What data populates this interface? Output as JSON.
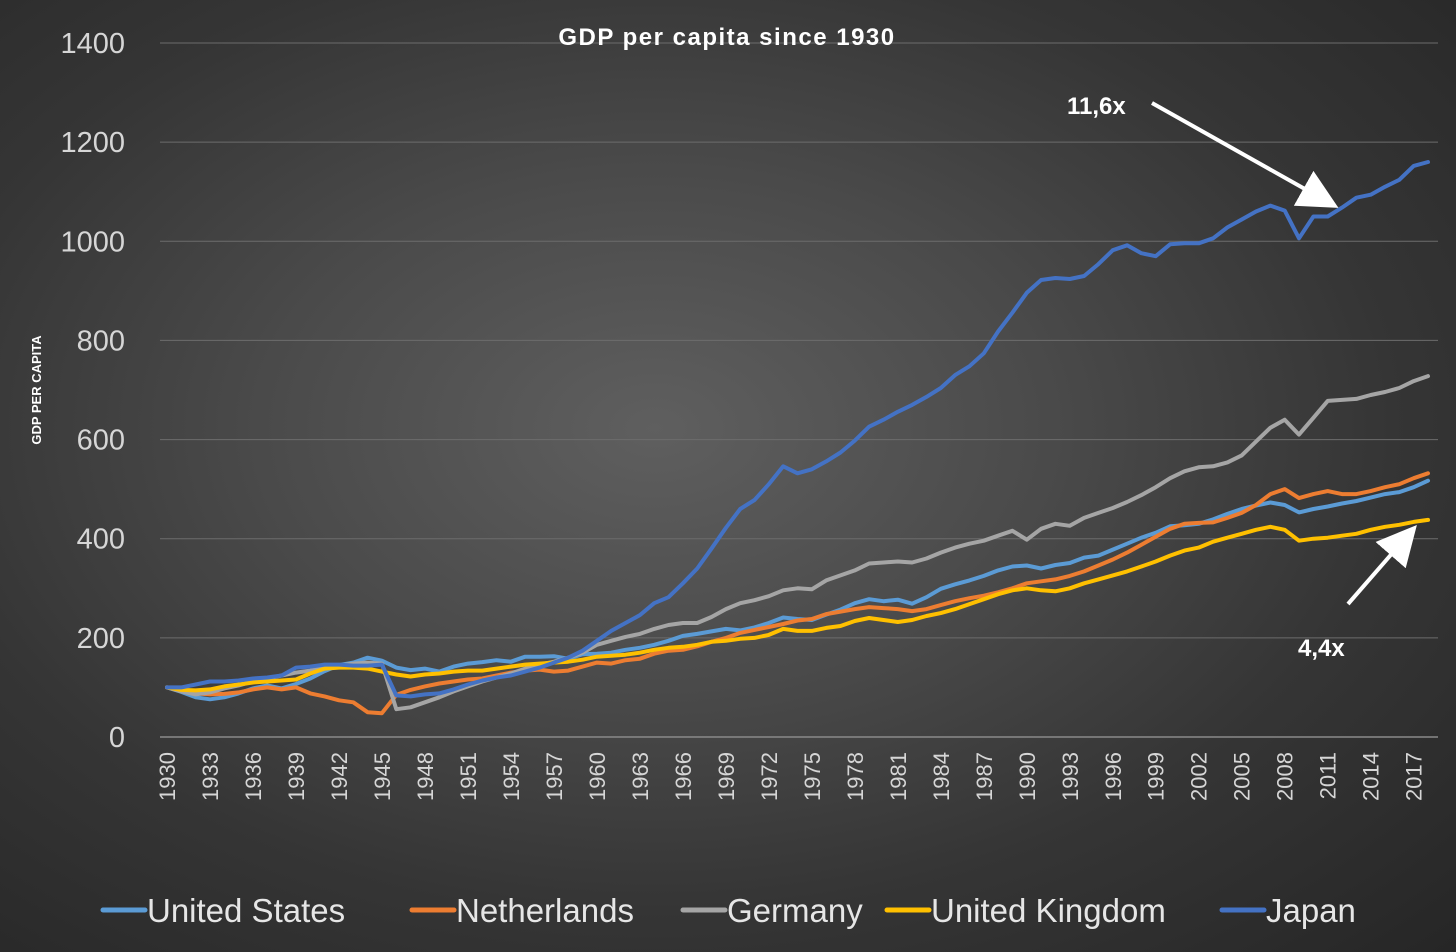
{
  "chart_data": {
    "type": "line",
    "title": "GDP per capita since 1930",
    "xlabel": "",
    "ylabel": "GDP PER CAPITA",
    "ylim": [
      0,
      1400
    ],
    "yticks": [
      "0",
      "200",
      "400",
      "600",
      "800",
      "1000",
      "1200",
      "1400"
    ],
    "xlim": [
      1930,
      2018
    ],
    "xtick_labels": [
      "1930",
      "1933",
      "1936",
      "1939",
      "1942",
      "1945",
      "1948",
      "1951",
      "1954",
      "1957",
      "1960",
      "1963",
      "1966",
      "1969",
      "1972",
      "1975",
      "1978",
      "1981",
      "1984",
      "1987",
      "1990",
      "1993",
      "1996",
      "1999",
      "2002",
      "2005",
      "2008",
      "2011",
      "2014",
      "2017"
    ],
    "grid": true,
    "legend_position": "bottom",
    "colors": {
      "United States": "#5b9bd5",
      "Netherlands": "#ed7d31",
      "Germany": "#a5a5a5",
      "United Kingdom": "#ffc000",
      "Japan": "#4472c4"
    },
    "series": [
      {
        "name": "United States",
        "x": [
          1930,
          1931,
          1932,
          1933,
          1934,
          1935,
          1936,
          1937,
          1938,
          1939,
          1940,
          1941,
          1942,
          1943,
          1944,
          1945,
          1946,
          1947,
          1948,
          1949,
          1950,
          1951,
          1952,
          1953,
          1954,
          1955,
          1956,
          1957,
          1958,
          1959,
          1960,
          1961,
          1962,
          1963,
          1964,
          1965,
          1966,
          1967,
          1968,
          1969,
          1970,
          1971,
          1972,
          1973,
          1974,
          1975,
          1976,
          1977,
          1978,
          1979,
          1980,
          1981,
          1982,
          1983,
          1984,
          1985,
          1986,
          1987,
          1988,
          1989,
          1990,
          1991,
          1992,
          1993,
          1994,
          1995,
          1996,
          1997,
          1998,
          1999,
          2000,
          2001,
          2002,
          2003,
          2004,
          2005,
          2006,
          2007,
          2008,
          2009,
          2010,
          2011,
          2012,
          2013,
          2014,
          2015,
          2016,
          2017,
          2018
        ],
        "values": [
          100,
          91,
          80,
          76,
          80,
          88,
          98,
          104,
          98,
          107,
          118,
          133,
          145,
          150,
          160,
          154,
          140,
          135,
          138,
          132,
          142,
          148,
          151,
          155,
          152,
          162,
          162,
          163,
          158,
          167,
          168,
          170,
          176,
          180,
          186,
          194,
          204,
          208,
          213,
          218,
          215,
          221,
          230,
          241,
          238,
          236,
          247,
          257,
          270,
          278,
          274,
          277,
          269,
          282,
          299,
          308,
          316,
          325,
          336,
          344,
          346,
          340,
          347,
          351,
          362,
          366,
          378,
          390,
          402,
          412,
          425,
          427,
          430,
          439,
          450,
          460,
          467,
          473,
          468,
          453,
          460,
          465,
          471,
          476,
          483,
          490,
          494,
          504,
          517
        ]
      },
      {
        "name": "Netherlands",
        "x": [
          1930,
          1931,
          1932,
          1933,
          1934,
          1935,
          1936,
          1937,
          1938,
          1939,
          1940,
          1941,
          1942,
          1943,
          1944,
          1945,
          1946,
          1947,
          1948,
          1949,
          1950,
          1951,
          1952,
          1953,
          1954,
          1955,
          1956,
          1957,
          1958,
          1959,
          1960,
          1961,
          1962,
          1963,
          1964,
          1965,
          1966,
          1967,
          1968,
          1969,
          1970,
          1971,
          1972,
          1973,
          1974,
          1975,
          1976,
          1977,
          1978,
          1979,
          1980,
          1981,
          1982,
          1983,
          1984,
          1985,
          1986,
          1987,
          1988,
          1989,
          1990,
          1991,
          1992,
          1993,
          1994,
          1995,
          1996,
          1997,
          1998,
          1999,
          2000,
          2001,
          2002,
          2003,
          2004,
          2005,
          2006,
          2007,
          2008,
          2009,
          2010,
          2011,
          2012,
          2013,
          2014,
          2015,
          2016,
          2017,
          2018
        ],
        "values": [
          100,
          94,
          88,
          86,
          87,
          90,
          96,
          100,
          96,
          100,
          88,
          82,
          74,
          70,
          50,
          48,
          85,
          95,
          102,
          108,
          112,
          116,
          118,
          124,
          130,
          134,
          136,
          132,
          134,
          142,
          150,
          148,
          155,
          158,
          168,
          174,
          176,
          183,
          192,
          200,
          210,
          216,
          222,
          228,
          235,
          238,
          248,
          253,
          258,
          262,
          260,
          258,
          254,
          258,
          266,
          274,
          280,
          285,
          292,
          300,
          310,
          314,
          318,
          325,
          334,
          346,
          358,
          372,
          388,
          404,
          420,
          430,
          432,
          433,
          442,
          452,
          468,
          490,
          500,
          482,
          490,
          496,
          490,
          490,
          496,
          504,
          510,
          522,
          532
        ]
      },
      {
        "name": "Germany",
        "x": [
          1930,
          1931,
          1932,
          1933,
          1934,
          1935,
          1936,
          1937,
          1938,
          1939,
          1940,
          1941,
          1942,
          1943,
          1944,
          1945,
          1946,
          1947,
          1948,
          1949,
          1950,
          1951,
          1952,
          1953,
          1954,
          1955,
          1956,
          1957,
          1958,
          1959,
          1960,
          1961,
          1962,
          1963,
          1964,
          1965,
          1966,
          1967,
          1968,
          1969,
          1970,
          1971,
          1972,
          1973,
          1974,
          1975,
          1976,
          1977,
          1978,
          1979,
          1980,
          1981,
          1982,
          1983,
          1984,
          1985,
          1986,
          1987,
          1988,
          1989,
          1990,
          1991,
          1992,
          1993,
          1994,
          1995,
          1996,
          1997,
          1998,
          1999,
          2000,
          2001,
          2002,
          2003,
          2004,
          2005,
          2006,
          2007,
          2008,
          2009,
          2010,
          2011,
          2012,
          2013,
          2014,
          2015,
          2016,
          2017,
          2018
        ],
        "values": [
          100,
          92,
          86,
          90,
          98,
          104,
          112,
          118,
          124,
          130,
          134,
          140,
          144,
          148,
          150,
          148,
          56,
          60,
          70,
          80,
          92,
          102,
          112,
          120,
          128,
          138,
          146,
          152,
          160,
          170,
          186,
          194,
          202,
          208,
          218,
          226,
          230,
          230,
          242,
          258,
          270,
          276,
          284,
          296,
          300,
          298,
          316,
          326,
          336,
          350,
          352,
          354,
          352,
          360,
          372,
          382,
          390,
          396,
          406,
          416,
          398,
          420,
          430,
          426,
          442,
          452,
          462,
          474,
          488,
          504,
          522,
          536,
          544,
          546,
          554,
          568,
          596,
          624,
          640,
          610,
          644,
          678,
          680,
          682,
          690,
          696,
          704,
          718,
          728
        ]
      },
      {
        "name": "United Kingdom",
        "x": [
          1930,
          1931,
          1932,
          1933,
          1934,
          1935,
          1936,
          1937,
          1938,
          1939,
          1940,
          1941,
          1942,
          1943,
          1944,
          1945,
          1946,
          1947,
          1948,
          1949,
          1950,
          1951,
          1952,
          1953,
          1954,
          1955,
          1956,
          1957,
          1958,
          1959,
          1960,
          1961,
          1962,
          1963,
          1964,
          1965,
          1966,
          1967,
          1968,
          1969,
          1970,
          1971,
          1972,
          1973,
          1974,
          1975,
          1976,
          1977,
          1978,
          1979,
          1980,
          1981,
          1982,
          1983,
          1984,
          1985,
          1986,
          1987,
          1988,
          1989,
          1990,
          1991,
          1992,
          1993,
          1994,
          1995,
          1996,
          1997,
          1998,
          1999,
          2000,
          2001,
          2002,
          2003,
          2004,
          2005,
          2006,
          2007,
          2008,
          2009,
          2010,
          2011,
          2012,
          2013,
          2014,
          2015,
          2016,
          2017,
          2018
        ],
        "values": [
          100,
          95,
          94,
          96,
          102,
          106,
          110,
          112,
          114,
          116,
          128,
          138,
          140,
          140,
          138,
          132,
          126,
          122,
          126,
          128,
          132,
          134,
          134,
          138,
          142,
          146,
          148,
          150,
          152,
          156,
          162,
          164,
          166,
          170,
          176,
          180,
          182,
          186,
          192,
          194,
          198,
          200,
          206,
          218,
          214,
          214,
          220,
          224,
          234,
          240,
          236,
          232,
          236,
          244,
          250,
          258,
          268,
          278,
          288,
          296,
          300,
          296,
          294,
          300,
          310,
          318,
          326,
          334,
          344,
          354,
          366,
          376,
          382,
          394,
          402,
          410,
          418,
          424,
          418,
          396,
          400,
          402,
          406,
          410,
          418,
          424,
          428,
          434,
          438
        ]
      },
      {
        "name": "Japan",
        "x": [
          1930,
          1931,
          1932,
          1933,
          1934,
          1935,
          1936,
          1937,
          1938,
          1939,
          1940,
          1941,
          1942,
          1943,
          1944,
          1945,
          1946,
          1947,
          1948,
          1949,
          1950,
          1951,
          1952,
          1953,
          1954,
          1955,
          1956,
          1957,
          1958,
          1959,
          1960,
          1961,
          1962,
          1963,
          1964,
          1965,
          1966,
          1967,
          1968,
          1969,
          1970,
          1971,
          1972,
          1973,
          1974,
          1975,
          1976,
          1977,
          1978,
          1979,
          1980,
          1981,
          1982,
          1983,
          1984,
          1985,
          1986,
          1987,
          1988,
          1989,
          1990,
          1991,
          1992,
          1993,
          1994,
          1995,
          1996,
          1997,
          1998,
          1999,
          2000,
          2001,
          2002,
          2003,
          2004,
          2005,
          2006,
          2007,
          2008,
          2009,
          2010,
          2011,
          2012,
          2013,
          2014,
          2015,
          2016,
          2017,
          2018
        ],
        "values": [
          100,
          100,
          106,
          112,
          112,
          114,
          118,
          120,
          124,
          140,
          142,
          146,
          146,
          144,
          144,
          146,
          84,
          82,
          86,
          88,
          96,
          106,
          114,
          120,
          124,
          132,
          140,
          150,
          160,
          174,
          194,
          214,
          230,
          246,
          270,
          282,
          310,
          340,
          380,
          422,
          460,
          478,
          510,
          546,
          532,
          540,
          556,
          574,
          598,
          626,
          640,
          656,
          670,
          686,
          704,
          730,
          748,
          774,
          818,
          856,
          896,
          922,
          926,
          924,
          930,
          954,
          982,
          992,
          976,
          970,
          994,
          996,
          996,
          1006,
          1028,
          1044,
          1060,
          1072,
          1062,
          1006,
          1050,
          1050,
          1068,
          1088,
          1094,
          1110,
          1124,
          1152,
          1160
        ]
      }
    ],
    "annotations": [
      {
        "text": "11,6x",
        "series": "Japan"
      },
      {
        "text": "4,4x",
        "series": "United Kingdom"
      }
    ]
  }
}
